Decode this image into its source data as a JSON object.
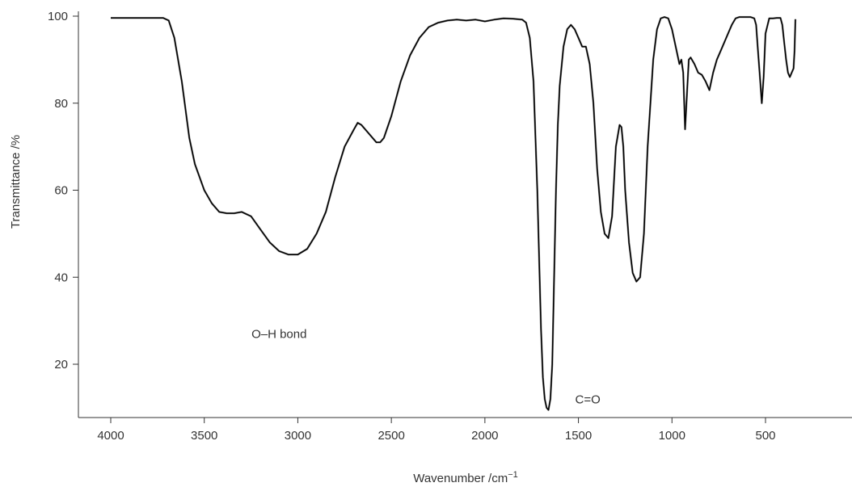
{
  "chart_data": {
    "type": "line",
    "title": "",
    "xlabel": "Wavenumber /cm",
    "xlabel_sup": "−1",
    "ylabel": "Transmittance /%",
    "xlim": [
      4170,
      120
    ],
    "ylim": [
      8,
      101
    ],
    "x_reversed": true,
    "xticks": [
      4000,
      3500,
      3000,
      2500,
      2000,
      1500,
      1000,
      500
    ],
    "yticks": [
      20,
      40,
      60,
      80,
      100
    ],
    "grid": false,
    "legend": "none",
    "annotations": [
      {
        "text": "O–H bond",
        "x": 3100,
        "y": 26
      },
      {
        "text": "C=O",
        "x": 1450,
        "y": 11
      }
    ],
    "series": [
      {
        "color": "#000000",
        "x": [
          4000,
          3720,
          3690,
          3660,
          3620,
          3580,
          3550,
          3500,
          3460,
          3420,
          3380,
          3340,
          3300,
          3250,
          3200,
          3150,
          3100,
          3050,
          3000,
          2950,
          2900,
          2850,
          2800,
          2750,
          2700,
          2680,
          2660,
          2620,
          2580,
          2560,
          2540,
          2500,
          2450,
          2400,
          2350,
          2300,
          2250,
          2200,
          2150,
          2100,
          2050,
          2000,
          1950,
          1900,
          1850,
          1800,
          1780,
          1760,
          1740,
          1720,
          1700,
          1690,
          1680,
          1670,
          1660,
          1650,
          1640,
          1630,
          1620,
          1610,
          1600,
          1580,
          1560,
          1540,
          1520,
          1500,
          1480,
          1460,
          1440,
          1420,
          1400,
          1380,
          1360,
          1340,
          1320,
          1300,
          1280,
          1270,
          1260,
          1250,
          1230,
          1210,
          1190,
          1170,
          1150,
          1130,
          1100,
          1080,
          1060,
          1040,
          1020,
          1000,
          980,
          960,
          950,
          940,
          930,
          920,
          910,
          900,
          880,
          860,
          840,
          820,
          800,
          780,
          760,
          740,
          720,
          700,
          680,
          660,
          640,
          620,
          600,
          580,
          560,
          550,
          540,
          530,
          520,
          510,
          500,
          480,
          460,
          440,
          420,
          410,
          400,
          390,
          380,
          370,
          360,
          350,
          345,
          340
        ],
        "y": [
          99.6,
          99.6,
          99,
          95,
          85,
          72,
          66,
          60,
          57,
          55,
          54.7,
          54.7,
          55,
          54,
          51,
          48,
          46,
          45.2,
          45.2,
          46.5,
          50,
          55,
          63,
          70,
          74,
          75.5,
          75,
          73,
          71,
          71,
          72,
          77,
          85,
          91,
          95,
          97.5,
          98.5,
          99,
          99.2,
          99,
          99.2,
          98.8,
          99.2,
          99.5,
          99.4,
          99.2,
          98.5,
          95,
          85,
          60,
          28,
          17,
          12,
          10,
          9.5,
          12,
          20,
          40,
          60,
          75,
          84,
          93,
          97,
          98,
          97,
          95,
          93,
          93,
          89,
          80,
          65,
          55,
          50,
          49,
          54,
          70,
          75,
          74.5,
          70,
          60,
          48,
          41,
          39,
          40,
          50,
          70,
          90,
          97,
          99.5,
          99.8,
          99.5,
          97,
          93,
          89,
          90,
          87,
          74,
          82,
          90,
          90.5,
          89,
          87,
          86.5,
          85,
          83,
          87,
          90,
          92,
          94,
          96,
          98,
          99.5,
          99.8,
          99.8,
          99.8,
          99.8,
          99.5,
          98,
          92,
          86,
          80,
          86,
          96,
          99.5,
          99.5,
          99.6,
          99.6,
          98,
          94,
          90,
          87,
          86,
          87,
          88,
          92,
          99.3
        ]
      }
    ]
  }
}
